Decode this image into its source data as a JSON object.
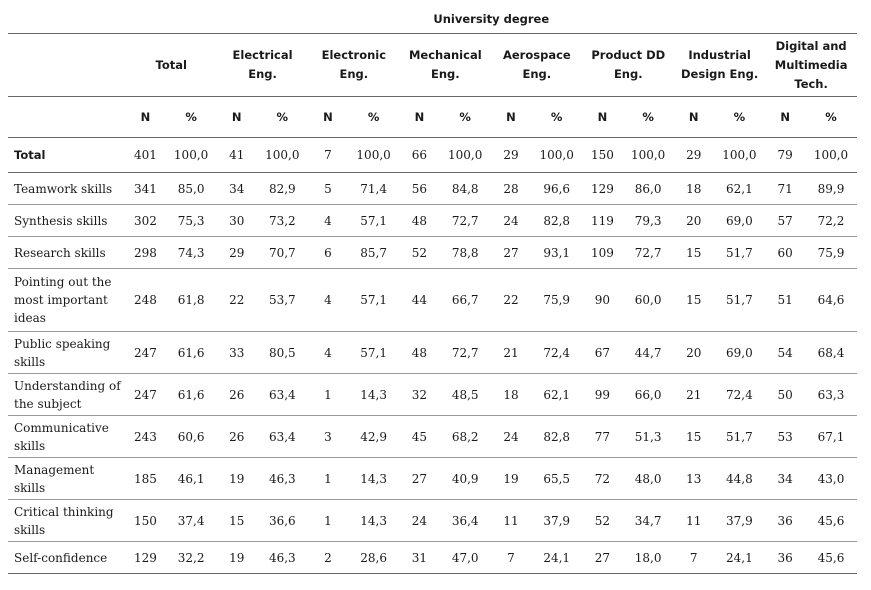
{
  "header": {
    "degree_title": "University degree",
    "groups": [
      "Total",
      "Electrical Eng.",
      "Electronic Eng.",
      "Mechanical Eng.",
      "Aerospace Eng.",
      "Product DD Eng.",
      "Industrial Design Eng.",
      "Digital and Multimedia Tech."
    ],
    "n_label": "N",
    "pct_label": "%"
  },
  "rows": [
    {
      "label": "Total",
      "v": [
        "401",
        "100,0",
        "41",
        "100,0",
        "7",
        "100,0",
        "66",
        "100,0",
        "29",
        "100,0",
        "150",
        "100,0",
        "29",
        "100,0",
        "79",
        "100,0"
      ]
    },
    {
      "label": "Teamwork skills",
      "v": [
        "341",
        "85,0",
        "34",
        "82,9",
        "5",
        "71,4",
        "56",
        "84,8",
        "28",
        "96,6",
        "129",
        "86,0",
        "18",
        "62,1",
        "71",
        "89,9"
      ]
    },
    {
      "label": "Synthesis skills",
      "v": [
        "302",
        "75,3",
        "30",
        "73,2",
        "4",
        "57,1",
        "48",
        "72,7",
        "24",
        "82,8",
        "119",
        "79,3",
        "20",
        "69,0",
        "57",
        "72,2"
      ]
    },
    {
      "label": "Research skills",
      "v": [
        "298",
        "74,3",
        "29",
        "70,7",
        "6",
        "85,7",
        "52",
        "78,8",
        "27",
        "93,1",
        "109",
        "72,7",
        "15",
        "51,7",
        "60",
        "75,9"
      ]
    },
    {
      "label": "Pointing out the most important ideas",
      "v": [
        "248",
        "61,8",
        "22",
        "53,7",
        "4",
        "57,1",
        "44",
        "66,7",
        "22",
        "75,9",
        "90",
        "60,0",
        "15",
        "51,7",
        "51",
        "64,6"
      ]
    },
    {
      "label": "Public speaking skills",
      "v": [
        "247",
        "61,6",
        "33",
        "80,5",
        "4",
        "57,1",
        "48",
        "72,7",
        "21",
        "72,4",
        "67",
        "44,7",
        "20",
        "69,0",
        "54",
        "68,4"
      ]
    },
    {
      "label": "Understanding of the subject",
      "v": [
        "247",
        "61,6",
        "26",
        "63,4",
        "1",
        "14,3",
        "32",
        "48,5",
        "18",
        "62,1",
        "99",
        "66,0",
        "21",
        "72,4",
        "50",
        "63,3"
      ]
    },
    {
      "label": "Communicative skills",
      "v": [
        "243",
        "60,6",
        "26",
        "63,4",
        "3",
        "42,9",
        "45",
        "68,2",
        "24",
        "82,8",
        "77",
        "51,3",
        "15",
        "51,7",
        "53",
        "67,1"
      ]
    },
    {
      "label": "Management skills",
      "v": [
        "185",
        "46,1",
        "19",
        "46,3",
        "1",
        "14,3",
        "27",
        "40,9",
        "19",
        "65,5",
        "72",
        "48,0",
        "13",
        "44,8",
        "34",
        "43,0"
      ]
    },
    {
      "label": "Critical thinking skills",
      "v": [
        "150",
        "37,4",
        "15",
        "36,6",
        "1",
        "14,3",
        "24",
        "36,4",
        "11",
        "37,9",
        "52",
        "34,7",
        "11",
        "37,9",
        "36",
        "45,6"
      ]
    },
    {
      "label": "Self-confidence",
      "v": [
        "129",
        "32,2",
        "19",
        "46,3",
        "2",
        "28,6",
        "31",
        "47,0",
        "7",
        "24,1",
        "27",
        "18,0",
        "7",
        "24,1",
        "36",
        "45,6"
      ]
    }
  ]
}
